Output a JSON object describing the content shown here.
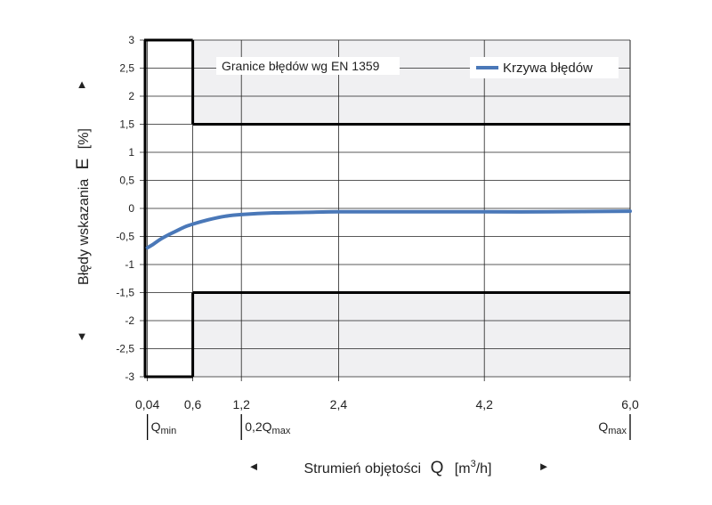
{
  "chart_data": {
    "type": "line",
    "x_ticks": [
      "0,04",
      "0,6",
      "1,2",
      "2,4",
      "4,2",
      "6,0"
    ],
    "x_tick_values": [
      0.04,
      0.6,
      1.2,
      2.4,
      4.2,
      6.0
    ],
    "y_ticks": [
      "3",
      "2,5",
      "2",
      "1,5",
      "1",
      "0,5",
      "0",
      "-0,5",
      "-1",
      "-1,5",
      "-2",
      "-2,5",
      "-3"
    ],
    "ylim": [
      -3,
      3
    ],
    "xlim": [
      0,
      6.0
    ],
    "grid": true,
    "ylabel": {
      "prefix": "Błędy wskazania",
      "symbol": "E",
      "unit": "[%]"
    },
    "xlabel": {
      "prefix": "Strumień objętości",
      "symbol": "Q",
      "unit_base": "[m",
      "unit_sup": "3",
      "unit_tail": "/h]"
    },
    "flow_markers": [
      {
        "base": "Q",
        "sub": "min",
        "x": 0.04
      },
      {
        "base": "0,2Q",
        "sub": "max",
        "x": 1.2
      },
      {
        "base": "Q",
        "sub": "max",
        "x": 6.0
      }
    ],
    "limits_annotation": "Granice błędów wg EN 1359",
    "limits": {
      "low_flow_upper": 3,
      "low_flow_lower": -3,
      "high_flow_upper": 1.5,
      "high_flow_lower": -1.5,
      "transition_x": 0.6
    },
    "series": [
      {
        "name": "Krzywa błędów",
        "color": "#4a78b8",
        "x": [
          0.04,
          0.1,
          0.2,
          0.3,
          0.4,
          0.5,
          0.6,
          0.8,
          1.0,
          1.2,
          1.6,
          2.0,
          2.4,
          3.0,
          4.2,
          5.0,
          6.0
        ],
        "y": [
          -0.7,
          -0.65,
          -0.55,
          -0.47,
          -0.4,
          -0.33,
          -0.28,
          -0.2,
          -0.14,
          -0.11,
          -0.08,
          -0.07,
          -0.06,
          -0.06,
          -0.06,
          -0.06,
          -0.05
        ]
      }
    ],
    "colors": {
      "limit_line": "#000000",
      "band_fill": "#f0f0f2",
      "grid": "#222222"
    },
    "arrow_glyphs": {
      "up": "▲",
      "down": "▼",
      "left": "◄",
      "right": "►"
    }
  }
}
